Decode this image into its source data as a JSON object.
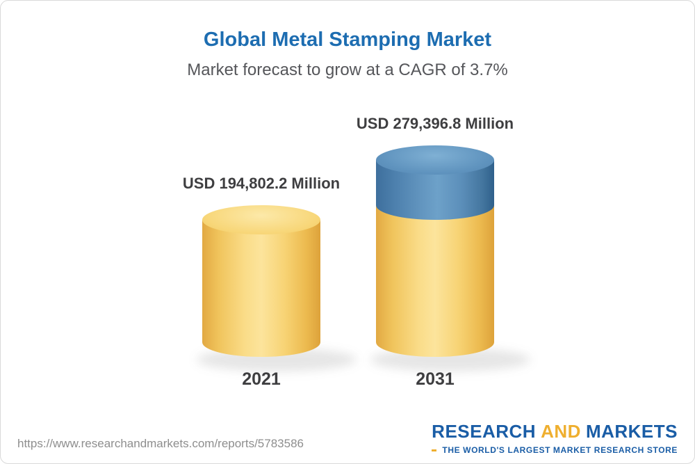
{
  "chart_data": {
    "type": "bar",
    "title": "Global Metal Stamping Market",
    "subtitle": "Market forecast to grow at a CAGR of 3.7%",
    "categories": [
      "2021",
      "2031"
    ],
    "values": [
      194802.2,
      279396.8
    ],
    "value_labels": [
      "USD 194,802.2 Million",
      "USD 279,396.8 Million"
    ],
    "unit": "USD Million",
    "cagr_percent": 3.7,
    "legend_position": "none",
    "grid": "off",
    "colors": {
      "base_segment": "#F5CE6A",
      "growth_segment": "#5B8DB8",
      "title_blue": "#1D6DB1",
      "label_dark": "#3E3E40"
    }
  },
  "footer": {
    "url": "https://www.researchandmarkets.com/reports/5783586",
    "logo": {
      "research": "RESEARCH",
      "and": "AND",
      "markets": "MARKETS",
      "tagline": "THE WORLD'S LARGEST MARKET RESEARCH STORE"
    }
  }
}
